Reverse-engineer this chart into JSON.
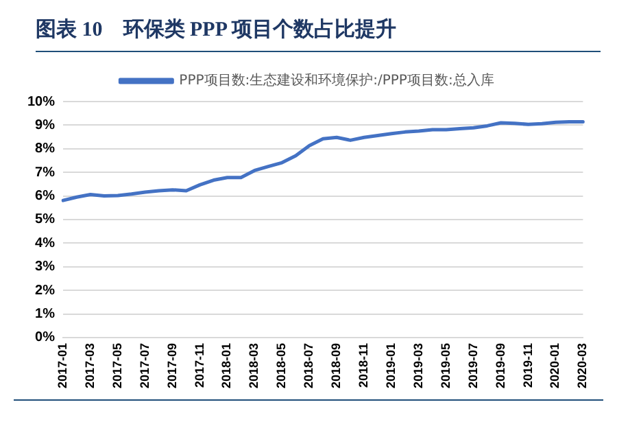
{
  "chart_data": {
    "type": "line",
    "title": "图表 10　环保类 PPP 项目个数占比提升",
    "categories": [
      "2017-01",
      null,
      "2017-03",
      null,
      "2017-05",
      null,
      "2017-07",
      null,
      "2017-09",
      null,
      "2017-11",
      null,
      "2018-01",
      null,
      "2018-03",
      null,
      "2018-05",
      null,
      "2018-07",
      null,
      "2018-09",
      null,
      "2018-11",
      null,
      "2019-01",
      null,
      "2019-03",
      null,
      "2019-05",
      null,
      "2019-07",
      null,
      "2019-09",
      null,
      "2019-11",
      null,
      "2020-01",
      null,
      "2020-03"
    ],
    "series": [
      {
        "name": "PPP项目数:生态建设和环境保护:/PPP项目数:总入库",
        "color": "#4472c4",
        "values": [
          5.81,
          5.95,
          6.06,
          6.0,
          6.02,
          6.08,
          6.16,
          6.22,
          6.26,
          6.22,
          6.47,
          6.67,
          6.78,
          6.78,
          7.08,
          7.25,
          7.41,
          7.7,
          8.13,
          8.42,
          8.48,
          8.36,
          8.48,
          8.56,
          8.64,
          8.71,
          8.75,
          8.81,
          8.81,
          8.85,
          8.89,
          8.97,
          9.1,
          9.08,
          9.03,
          9.06,
          9.12,
          9.14,
          9.14
        ]
      }
    ],
    "ylim": [
      0,
      10
    ],
    "yticks": [
      {
        "value": 0,
        "label": "0%"
      },
      {
        "value": 1,
        "label": "1%"
      },
      {
        "value": 2,
        "label": "2%"
      },
      {
        "value": 3,
        "label": "3%"
      },
      {
        "value": 4,
        "label": "4%"
      },
      {
        "value": 5,
        "label": "5%"
      },
      {
        "value": 6,
        "label": "6%"
      },
      {
        "value": 7,
        "label": "7%"
      },
      {
        "value": 8,
        "label": "8%"
      },
      {
        "value": 9,
        "label": "9%"
      },
      {
        "value": 10,
        "label": "10%"
      }
    ],
    "grid": "y",
    "legend": "top",
    "marker": "none",
    "line_style": "solid"
  }
}
